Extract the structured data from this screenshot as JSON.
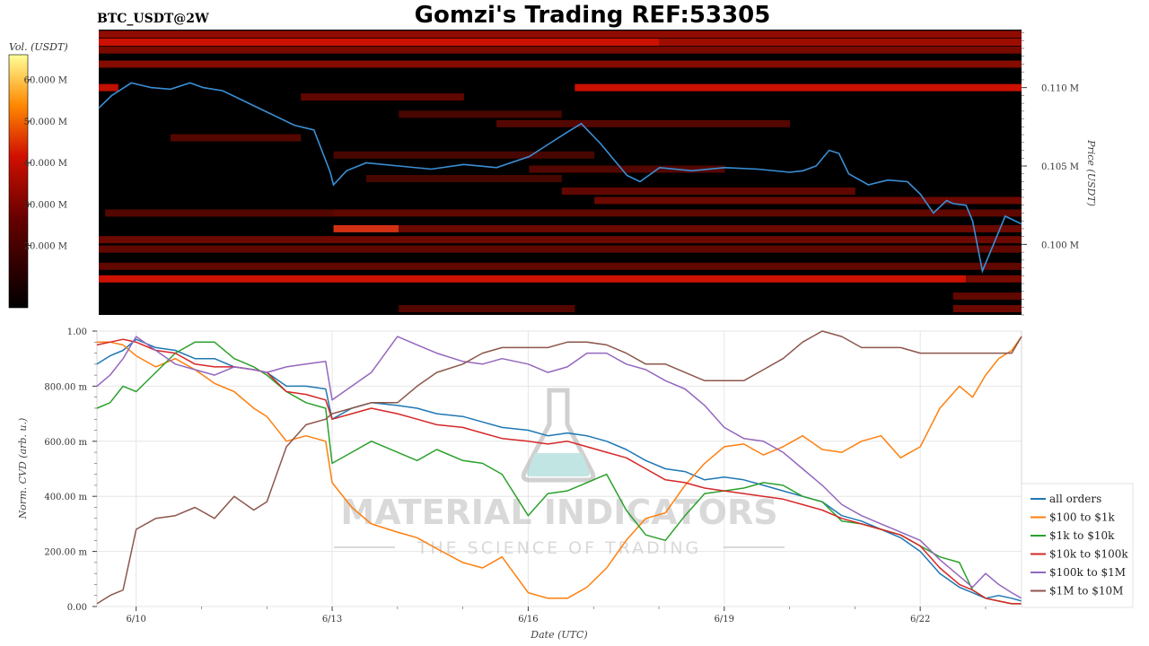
{
  "header": {
    "symbol": "BTC_USDT@2W",
    "title": "Gomzi's Trading REF:53305"
  },
  "watermark": {
    "line1": "MATERIAL INDICATORS",
    "line2": "THE SCIENCE OF TRADING",
    "icon": "flask-icon"
  },
  "colors": {
    "heat_low": "#000000",
    "heat_mid": "#cc1100",
    "heat_high": "#ffff99",
    "price_line": "#3a8fd6",
    "all_orders": "#1f77b4",
    "usd100_1k": "#ff7f0e",
    "usd1k_10k": "#2ca02c",
    "usd10k_100k": "#d62728",
    "usd100k_1m": "#9467bd",
    "usd1m_10m": "#8c564b"
  },
  "chart_data": [
    {
      "type": "heatmap",
      "colorbar": {
        "label": "Vol. (USDT)",
        "ticks": [
          "60.000 M",
          "50.000 M",
          "40.000 M",
          "30.000 M",
          "20.000 M"
        ],
        "tick_values": [
          60,
          50,
          40,
          30,
          20
        ],
        "range": [
          5,
          66
        ]
      },
      "ylabel": "Price (USDT)",
      "y_ticks": [
        "0.110 M",
        "0.105 M",
        "0.100 M"
      ],
      "y_tick_values": [
        110000,
        105000,
        100000
      ],
      "ylim": [
        95500,
        113700
      ],
      "xlim": [
        9.4,
        23.55
      ],
      "bands": [
        {
          "price": 113400,
          "from": 9.4,
          "to": 23.55,
          "level": 0.6
        },
        {
          "price": 112900,
          "from": 9.4,
          "to": 18.0,
          "level": 0.85
        },
        {
          "price": 112900,
          "from": 18.0,
          "to": 23.55,
          "level": 0.65
        },
        {
          "price": 112400,
          "from": 9.4,
          "to": 23.55,
          "level": 0.5
        },
        {
          "price": 111500,
          "from": 9.4,
          "to": 23.55,
          "level": 0.55
        },
        {
          "price": 110000,
          "from": 9.4,
          "to": 9.7,
          "level": 0.8
        },
        {
          "price": 110000,
          "from": 16.7,
          "to": 23.55,
          "level": 0.85
        },
        {
          "price": 109400,
          "from": 12.5,
          "to": 15.0,
          "level": 0.4
        },
        {
          "price": 108300,
          "from": 14.0,
          "to": 16.5,
          "level": 0.3
        },
        {
          "price": 107700,
          "from": 15.5,
          "to": 20.0,
          "level": 0.35
        },
        {
          "price": 106800,
          "from": 10.5,
          "to": 12.5,
          "level": 0.35
        },
        {
          "price": 105700,
          "from": 13.0,
          "to": 17.0,
          "level": 0.3
        },
        {
          "price": 104800,
          "from": 16.0,
          "to": 19.0,
          "level": 0.35
        },
        {
          "price": 104200,
          "from": 13.5,
          "to": 16.5,
          "level": 0.3
        },
        {
          "price": 103400,
          "from": 16.5,
          "to": 21.0,
          "level": 0.4
        },
        {
          "price": 102800,
          "from": 17.0,
          "to": 23.55,
          "level": 0.45
        },
        {
          "price": 102000,
          "from": 9.5,
          "to": 13.0,
          "level": 0.35
        },
        {
          "price": 102000,
          "from": 13.0,
          "to": 23.55,
          "level": 0.4
        },
        {
          "price": 101000,
          "from": 13.0,
          "to": 14.0,
          "level": 0.9
        },
        {
          "price": 101000,
          "from": 14.0,
          "to": 23.55,
          "level": 0.45
        },
        {
          "price": 100300,
          "from": 9.4,
          "to": 23.55,
          "level": 0.45
        },
        {
          "price": 99700,
          "from": 9.4,
          "to": 23.55,
          "level": 0.4
        },
        {
          "price": 98600,
          "from": 9.4,
          "to": 23.55,
          "level": 0.4
        },
        {
          "price": 97800,
          "from": 9.4,
          "to": 22.7,
          "level": 0.85
        },
        {
          "price": 97800,
          "from": 22.7,
          "to": 23.55,
          "level": 0.5
        },
        {
          "price": 96700,
          "from": 22.5,
          "to": 23.55,
          "level": 0.4
        },
        {
          "price": 95900,
          "from": 14.0,
          "to": 16.7,
          "level": 0.35
        },
        {
          "price": 95900,
          "from": 22.5,
          "to": 23.55,
          "level": 0.45
        }
      ],
      "price": {
        "x": [
          9.4,
          9.6,
          9.9,
          10.2,
          10.5,
          10.8,
          11.0,
          11.3,
          11.6,
          12.0,
          12.4,
          12.7,
          12.95,
          13.0,
          13.2,
          13.5,
          14.0,
          14.5,
          15.0,
          15.5,
          16.0,
          16.3,
          16.6,
          16.8,
          17.1,
          17.3,
          17.5,
          17.7,
          18.0,
          18.5,
          19.0,
          19.5,
          20.0,
          20.2,
          20.4,
          20.6,
          20.75,
          20.9,
          21.2,
          21.5,
          21.8,
          22.0,
          22.2,
          22.4,
          22.5,
          22.7,
          22.8,
          22.95,
          23.1,
          23.3,
          23.55
        ],
        "y": [
          108700,
          109500,
          110300,
          110000,
          109900,
          110300,
          110000,
          109800,
          109200,
          108400,
          107600,
          107300,
          104600,
          103800,
          104700,
          105200,
          105000,
          104800,
          105100,
          104900,
          105600,
          106400,
          107200,
          107700,
          106400,
          105400,
          104400,
          104000,
          104900,
          104700,
          104900,
          104800,
          104600,
          104700,
          105000,
          106000,
          105800,
          104500,
          103800,
          104100,
          104000,
          103200,
          102000,
          102800,
          102600,
          102500,
          101500,
          98300,
          99800,
          101800,
          101300
        ]
      }
    },
    {
      "type": "line",
      "xlabel": "Date (UTC)",
      "ylabel": "Norm. CVD (arb. u.)",
      "x_ticks": [
        "6/10",
        "6/13",
        "6/16",
        "6/19",
        "6/22"
      ],
      "x_tick_values": [
        10,
        13,
        16,
        19,
        22
      ],
      "xlim": [
        9.4,
        23.55
      ],
      "y_ticks": [
        "1.00",
        "800.00 m",
        "600.00 m",
        "400.00 m",
        "200.00 m",
        "0.00"
      ],
      "y_tick_values": [
        1.0,
        0.8,
        0.6,
        0.4,
        0.2,
        0.0
      ],
      "ylim": [
        0,
        1.0
      ],
      "legend": "right",
      "x": [
        9.4,
        9.6,
        9.8,
        10.0,
        10.3,
        10.6,
        10.9,
        11.2,
        11.5,
        11.8,
        12.0,
        12.3,
        12.6,
        12.9,
        13.0,
        13.3,
        13.6,
        14.0,
        14.3,
        14.6,
        15.0,
        15.3,
        15.6,
        16.0,
        16.3,
        16.6,
        16.9,
        17.2,
        17.5,
        17.8,
        18.1,
        18.4,
        18.7,
        19.0,
        19.3,
        19.6,
        19.9,
        20.2,
        20.5,
        20.8,
        21.1,
        21.4,
        21.7,
        22.0,
        22.3,
        22.6,
        22.8,
        23.0,
        23.2,
        23.4,
        23.55
      ],
      "series": [
        {
          "name": "all orders",
          "key": "all_orders",
          "values": [
            0.88,
            0.91,
            0.93,
            0.97,
            0.94,
            0.93,
            0.9,
            0.9,
            0.87,
            0.86,
            0.85,
            0.8,
            0.8,
            0.79,
            0.68,
            0.72,
            0.74,
            0.73,
            0.72,
            0.7,
            0.69,
            0.67,
            0.65,
            0.64,
            0.62,
            0.63,
            0.62,
            0.6,
            0.57,
            0.53,
            0.5,
            0.49,
            0.46,
            0.47,
            0.46,
            0.44,
            0.42,
            0.4,
            0.38,
            0.33,
            0.31,
            0.28,
            0.25,
            0.2,
            0.12,
            0.07,
            0.05,
            0.03,
            0.04,
            0.03,
            0.02
          ]
        },
        {
          "name": "$100 to $1k",
          "key": "usd100_1k",
          "values": [
            0.96,
            0.96,
            0.95,
            0.91,
            0.87,
            0.9,
            0.86,
            0.81,
            0.78,
            0.72,
            0.69,
            0.6,
            0.62,
            0.6,
            0.45,
            0.36,
            0.3,
            0.27,
            0.25,
            0.21,
            0.16,
            0.14,
            0.18,
            0.05,
            0.03,
            0.03,
            0.07,
            0.14,
            0.24,
            0.32,
            0.34,
            0.44,
            0.52,
            0.58,
            0.59,
            0.55,
            0.58,
            0.62,
            0.57,
            0.56,
            0.6,
            0.62,
            0.54,
            0.58,
            0.72,
            0.8,
            0.76,
            0.84,
            0.9,
            0.93,
            0.98
          ]
        },
        {
          "name": "$1k to $10k",
          "key": "usd1k_10k",
          "values": [
            0.72,
            0.74,
            0.8,
            0.78,
            0.85,
            0.92,
            0.96,
            0.96,
            0.9,
            0.87,
            0.84,
            0.78,
            0.74,
            0.72,
            0.52,
            0.56,
            0.6,
            0.56,
            0.53,
            0.57,
            0.53,
            0.52,
            0.48,
            0.33,
            0.41,
            0.42,
            0.45,
            0.48,
            0.35,
            0.26,
            0.24,
            0.33,
            0.41,
            0.42,
            0.43,
            0.45,
            0.44,
            0.4,
            0.38,
            0.31,
            0.3,
            0.28,
            0.26,
            0.22,
            0.18,
            0.16,
            0.06,
            0.03,
            0.02,
            0.01,
            0.01
          ]
        },
        {
          "name": "$10k to $100k",
          "key": "usd10k_100k",
          "values": [
            0.95,
            0.96,
            0.97,
            0.96,
            0.93,
            0.92,
            0.88,
            0.87,
            0.87,
            0.86,
            0.85,
            0.78,
            0.77,
            0.75,
            0.68,
            0.7,
            0.72,
            0.7,
            0.68,
            0.66,
            0.65,
            0.63,
            0.61,
            0.6,
            0.59,
            0.6,
            0.58,
            0.56,
            0.54,
            0.5,
            0.46,
            0.45,
            0.43,
            0.42,
            0.41,
            0.4,
            0.39,
            0.37,
            0.35,
            0.32,
            0.3,
            0.28,
            0.26,
            0.22,
            0.14,
            0.08,
            0.06,
            0.03,
            0.02,
            0.01,
            0.01
          ]
        },
        {
          "name": "$100k to $1M",
          "key": "usd100k_1m",
          "values": [
            0.8,
            0.84,
            0.9,
            0.98,
            0.93,
            0.88,
            0.86,
            0.84,
            0.87,
            0.86,
            0.85,
            0.87,
            0.88,
            0.89,
            0.75,
            0.8,
            0.85,
            0.98,
            0.95,
            0.92,
            0.89,
            0.88,
            0.9,
            0.88,
            0.85,
            0.87,
            0.92,
            0.92,
            0.88,
            0.86,
            0.82,
            0.79,
            0.73,
            0.65,
            0.61,
            0.6,
            0.56,
            0.5,
            0.44,
            0.37,
            0.33,
            0.3,
            0.27,
            0.24,
            0.17,
            0.11,
            0.07,
            0.12,
            0.08,
            0.05,
            0.03
          ]
        },
        {
          "name": "$1M to $10M",
          "key": "usd1m_10m",
          "values": [
            0.01,
            0.04,
            0.06,
            0.28,
            0.32,
            0.33,
            0.36,
            0.32,
            0.4,
            0.35,
            0.38,
            0.58,
            0.66,
            0.68,
            0.7,
            0.72,
            0.74,
            0.74,
            0.8,
            0.85,
            0.88,
            0.92,
            0.94,
            0.94,
            0.94,
            0.96,
            0.96,
            0.95,
            0.92,
            0.88,
            0.88,
            0.85,
            0.82,
            0.82,
            0.82,
            0.86,
            0.9,
            0.96,
            1.0,
            0.98,
            0.94,
            0.94,
            0.94,
            0.92,
            0.92,
            0.92,
            0.92,
            0.92,
            0.92,
            0.92,
            0.98
          ]
        }
      ]
    }
  ]
}
